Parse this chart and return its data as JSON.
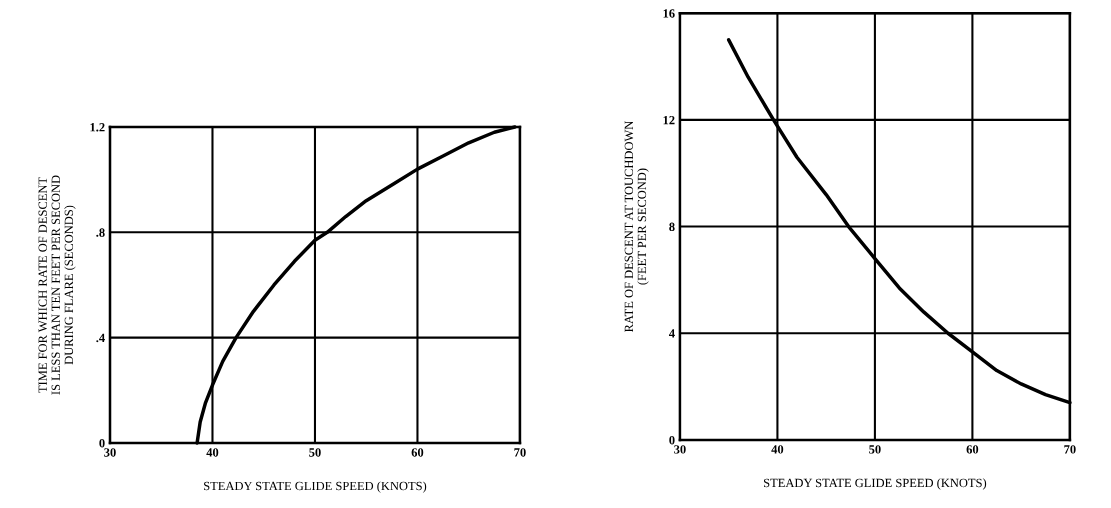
{
  "chart_data": [
    {
      "type": "line",
      "xlabel": "STEADY STATE GLIDE SPEED (KNOTS)",
      "ylabel": "TIME FOR WHICH RATE OF DESCENT\nIS LESS THAN TEN FEET PER SECOND\nDURING FLARE (SECONDS)",
      "xlim": [
        30,
        70
      ],
      "ylim": [
        0,
        1.2
      ],
      "xticks": [
        30,
        40,
        50,
        60,
        70
      ],
      "yticks": [
        0,
        {
          "value": 0.4,
          "label": ".4"
        },
        {
          "value": 0.8,
          "label": ".8"
        },
        1.2
      ],
      "grid": true,
      "marker": "none",
      "line_style": "solid",
      "series": [
        {
          "color": "#000000",
          "x": [
            38.5,
            38.8,
            39.3,
            40,
            41,
            42.3,
            44,
            46,
            48,
            50,
            51.2,
            53,
            55,
            57.5,
            60,
            62.5,
            65,
            67.5,
            69.5
          ],
          "values": [
            0,
            0.08,
            0.15,
            0.22,
            0.31,
            0.4,
            0.5,
            0.6,
            0.69,
            0.77,
            0.8,
            0.86,
            0.92,
            0.98,
            1.04,
            1.09,
            1.14,
            1.18,
            1.2
          ]
        }
      ]
    },
    {
      "type": "line",
      "xlabel": "STEADY STATE GLIDE SPEED (KNOTS)",
      "ylabel": "RATE OF DESCENT AT TOUCHDOWN\n(FEET PER SECOND)",
      "xlim": [
        30,
        70
      ],
      "ylim": [
        0,
        16
      ],
      "xticks": [
        30,
        40,
        50,
        60,
        70
      ],
      "yticks": [
        0,
        4,
        8,
        12,
        16
      ],
      "grid": true,
      "marker": "none",
      "line_style": "solid",
      "series": [
        {
          "color": "#000000",
          "x": [
            35,
            37,
            39.6,
            42,
            45,
            47.3,
            50,
            52.5,
            55,
            57.5,
            60,
            62.5,
            65,
            67.5,
            70
          ],
          "values": [
            15,
            13.6,
            12,
            10.6,
            9.2,
            8,
            6.8,
            5.7,
            4.8,
            4,
            3.3,
            2.6,
            2.1,
            1.7,
            1.4
          ]
        }
      ]
    }
  ]
}
